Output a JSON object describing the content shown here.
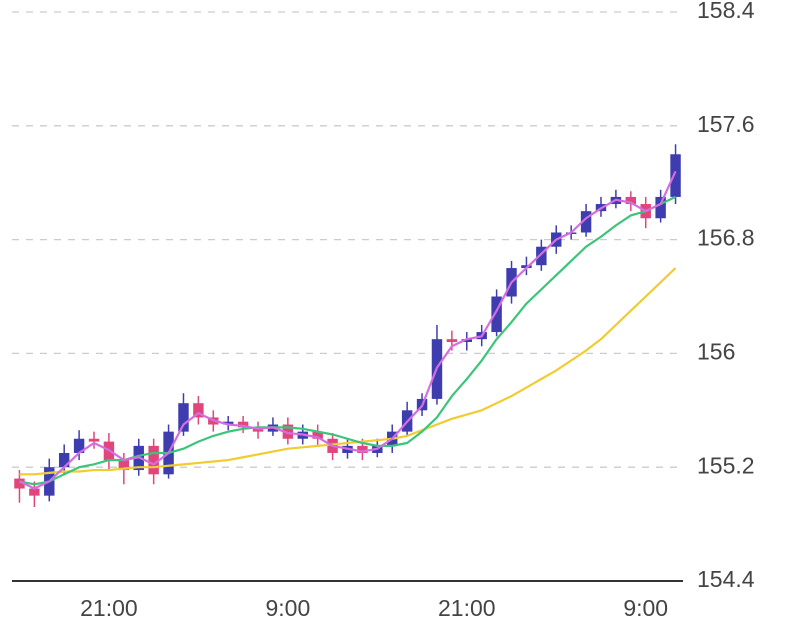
{
  "chart_data": {
    "type": "candlestick",
    "categories": [
      null,
      null,
      null,
      null,
      null,
      null,
      "21:00",
      null,
      null,
      null,
      null,
      null,
      null,
      null,
      null,
      null,
      null,
      null,
      "9:00",
      null,
      null,
      null,
      null,
      null,
      null,
      null,
      null,
      null,
      null,
      null,
      "21:00",
      null,
      null,
      null,
      null,
      null,
      null,
      null,
      null,
      null,
      null,
      null,
      "9:00",
      null,
      null
    ],
    "open": [
      155.12,
      155.05,
      155.0,
      155.2,
      155.3,
      155.4,
      155.38,
      155.25,
      155.18,
      155.35,
      155.15,
      155.45,
      155.65,
      155.55,
      155.5,
      155.52,
      155.48,
      155.45,
      155.5,
      155.4,
      155.45,
      155.4,
      155.3,
      155.35,
      155.3,
      155.35,
      155.45,
      155.6,
      155.68,
      156.1,
      156.08,
      156.1,
      156.15,
      156.4,
      156.6,
      156.62,
      156.75,
      156.85,
      156.85,
      157.0,
      157.05,
      157.1,
      157.05,
      156.95,
      157.1
    ],
    "high": [
      155.18,
      155.1,
      155.26,
      155.36,
      155.46,
      155.45,
      155.44,
      155.3,
      155.4,
      155.4,
      155.5,
      155.72,
      155.7,
      155.6,
      155.56,
      155.56,
      155.52,
      155.55,
      155.55,
      155.5,
      155.5,
      155.44,
      155.4,
      155.4,
      155.4,
      155.5,
      155.66,
      155.72,
      156.2,
      156.16,
      156.15,
      156.2,
      156.45,
      156.65,
      156.68,
      156.8,
      156.9,
      156.9,
      157.05,
      157.1,
      157.15,
      157.14,
      157.1,
      157.15,
      157.47
    ],
    "low": [
      154.95,
      154.92,
      154.96,
      155.15,
      155.25,
      155.33,
      155.18,
      155.08,
      155.14,
      155.08,
      155.12,
      155.42,
      155.5,
      155.45,
      155.46,
      155.44,
      155.4,
      155.42,
      155.36,
      155.36,
      155.35,
      155.25,
      155.26,
      155.25,
      155.27,
      155.3,
      155.42,
      155.56,
      155.64,
      156.02,
      156.02,
      156.05,
      156.12,
      156.35,
      156.55,
      156.58,
      156.7,
      156.8,
      156.82,
      156.96,
      157.02,
      157.0,
      156.88,
      156.92,
      157.05
    ],
    "close": [
      155.05,
      155.0,
      155.2,
      155.3,
      155.4,
      155.38,
      155.25,
      155.18,
      155.35,
      155.15,
      155.45,
      155.65,
      155.55,
      155.5,
      155.52,
      155.48,
      155.45,
      155.5,
      155.4,
      155.45,
      155.4,
      155.3,
      155.35,
      155.3,
      155.35,
      155.45,
      155.6,
      155.68,
      156.1,
      156.08,
      156.1,
      156.15,
      156.4,
      156.6,
      156.62,
      156.75,
      156.85,
      156.85,
      157.0,
      157.05,
      157.1,
      157.05,
      156.95,
      157.1,
      157.4
    ],
    "up_color": "#3d3db0",
    "down_color": "#e0467c",
    "series": [
      {
        "color": "#d46ee0",
        "values": [
          155.1,
          155.05,
          155.1,
          155.2,
          155.3,
          155.37,
          155.32,
          155.25,
          155.27,
          155.22,
          155.3,
          155.5,
          155.58,
          155.53,
          155.5,
          155.49,
          155.47,
          155.48,
          155.44,
          155.43,
          155.41,
          155.35,
          155.33,
          155.31,
          155.33,
          155.4,
          155.52,
          155.63,
          155.9,
          156.05,
          156.1,
          156.12,
          156.3,
          156.5,
          156.6,
          156.7,
          156.8,
          156.85,
          156.95,
          157.02,
          157.08,
          157.06,
          157.0,
          157.05,
          157.28
        ]
      },
      {
        "color": "#3cc47a",
        "values": [
          155.1,
          155.08,
          155.1,
          155.15,
          155.2,
          155.22,
          155.25,
          155.25,
          155.28,
          155.3,
          155.3,
          155.33,
          155.38,
          155.42,
          155.45,
          155.47,
          155.48,
          155.48,
          155.48,
          155.47,
          155.45,
          155.43,
          155.4,
          155.37,
          155.35,
          155.35,
          155.37,
          155.45,
          155.55,
          155.7,
          155.82,
          155.95,
          156.1,
          156.22,
          156.35,
          156.45,
          156.55,
          156.65,
          156.75,
          156.82,
          156.9,
          156.97,
          157.0,
          157.05,
          157.1
        ]
      },
      {
        "color": "#f0cc30",
        "values": [
          155.15,
          155.15,
          155.16,
          155.17,
          155.17,
          155.18,
          155.18,
          155.19,
          155.2,
          155.2,
          155.21,
          155.22,
          155.23,
          155.24,
          155.25,
          155.27,
          155.29,
          155.31,
          155.33,
          155.34,
          155.35,
          155.36,
          155.37,
          155.38,
          155.39,
          155.4,
          155.42,
          155.46,
          155.5,
          155.54,
          155.57,
          155.6,
          155.65,
          155.7,
          155.76,
          155.82,
          155.88,
          155.95,
          156.02,
          156.1,
          156.2,
          156.3,
          156.4,
          156.5,
          156.6
        ]
      }
    ],
    "ylim": [
      154.4,
      158.4
    ],
    "yticks": [
      154.4,
      155.2,
      156,
      156.8,
      157.6,
      158.4
    ],
    "grid": true
  }
}
